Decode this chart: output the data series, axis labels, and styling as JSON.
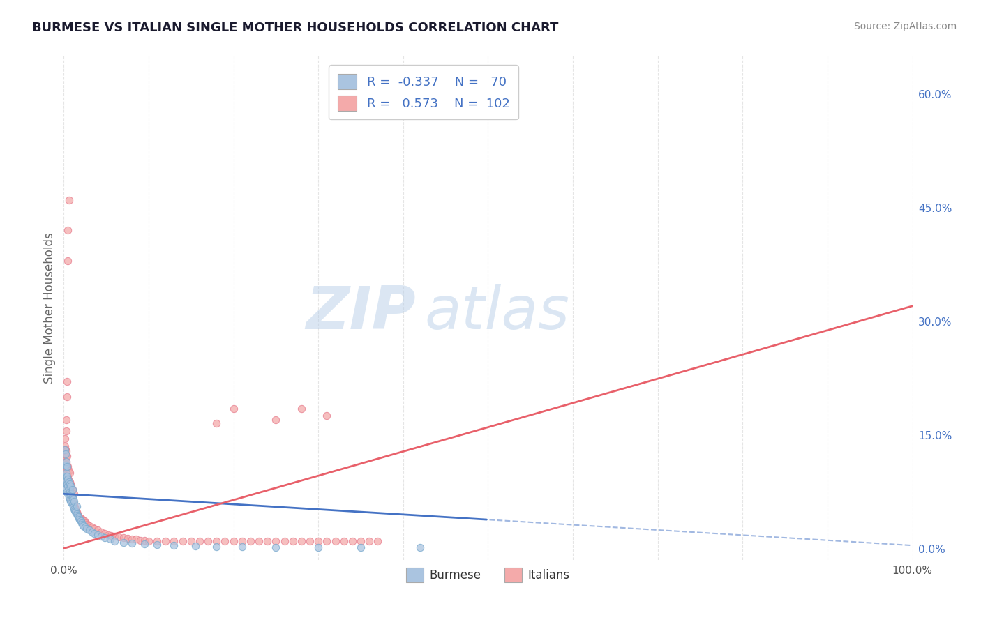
{
  "title": "BURMESE VS ITALIAN SINGLE MOTHER HOUSEHOLDS CORRELATION CHART",
  "source_text": "Source: ZipAtlas.com",
  "ylabel": "Single Mother Households",
  "watermark_zip": "ZIP",
  "watermark_atlas": "atlas",
  "xlim": [
    0.0,
    1.0
  ],
  "ylim": [
    -0.015,
    0.65
  ],
  "xtick_positions": [
    0.0,
    0.1,
    0.2,
    0.3,
    0.4,
    0.5,
    0.6,
    0.7,
    0.8,
    0.9,
    1.0
  ],
  "xtick_labels": [
    "0.0%",
    "",
    "",
    "",
    "",
    "",
    "",
    "",
    "",
    "",
    "100.0%"
  ],
  "yticks_right": [
    0.0,
    0.15,
    0.3,
    0.45,
    0.6
  ],
  "ytick_labels_right": [
    "0.0%",
    "15.0%",
    "30.0%",
    "45.0%",
    "60.0%"
  ],
  "burmese_facecolor": "#aac4e0",
  "burmese_edgecolor": "#7aaace",
  "italian_facecolor": "#f4aaaa",
  "italian_edgecolor": "#e88090",
  "burmese_line_color": "#4472c4",
  "italian_line_color": "#e8606a",
  "burmese_R": -0.337,
  "burmese_N": 70,
  "italian_R": 0.573,
  "italian_N": 102,
  "legend_label_burmese": "Burmese",
  "legend_label_italian": "Italians",
  "blue_text_color": "#4472c4",
  "title_color": "#1a1a2e",
  "axis_label_color": "#666666",
  "grid_color": "#cccccc",
  "background_color": "#ffffff",
  "burmese_line_intercept": 0.072,
  "burmese_line_slope": -0.068,
  "italian_line_intercept": 0.0,
  "italian_line_slope": 0.32,
  "burmese_scatter_x": [
    0.001,
    0.001,
    0.001,
    0.002,
    0.002,
    0.002,
    0.002,
    0.003,
    0.003,
    0.003,
    0.003,
    0.004,
    0.004,
    0.004,
    0.004,
    0.005,
    0.005,
    0.005,
    0.006,
    0.006,
    0.006,
    0.007,
    0.007,
    0.007,
    0.008,
    0.008,
    0.008,
    0.009,
    0.009,
    0.01,
    0.01,
    0.01,
    0.011,
    0.011,
    0.012,
    0.012,
    0.013,
    0.014,
    0.015,
    0.015,
    0.016,
    0.017,
    0.018,
    0.019,
    0.02,
    0.021,
    0.022,
    0.023,
    0.025,
    0.027,
    0.03,
    0.033,
    0.036,
    0.04,
    0.044,
    0.048,
    0.055,
    0.06,
    0.07,
    0.08,
    0.095,
    0.11,
    0.13,
    0.155,
    0.18,
    0.21,
    0.25,
    0.3,
    0.35,
    0.42
  ],
  "burmese_scatter_y": [
    0.095,
    0.11,
    0.13,
    0.085,
    0.095,
    0.11,
    0.125,
    0.08,
    0.09,
    0.1,
    0.115,
    0.075,
    0.085,
    0.095,
    0.108,
    0.072,
    0.082,
    0.092,
    0.068,
    0.078,
    0.088,
    0.065,
    0.075,
    0.085,
    0.062,
    0.072,
    0.082,
    0.06,
    0.07,
    0.058,
    0.068,
    0.078,
    0.055,
    0.065,
    0.052,
    0.062,
    0.05,
    0.048,
    0.046,
    0.056,
    0.044,
    0.042,
    0.04,
    0.038,
    0.036,
    0.034,
    0.032,
    0.03,
    0.028,
    0.026,
    0.024,
    0.022,
    0.02,
    0.018,
    0.016,
    0.014,
    0.012,
    0.01,
    0.008,
    0.007,
    0.006,
    0.005,
    0.004,
    0.003,
    0.002,
    0.002,
    0.001,
    0.001,
    0.001,
    0.001
  ],
  "italian_scatter_x": [
    0.001,
    0.001,
    0.001,
    0.001,
    0.001,
    0.002,
    0.002,
    0.002,
    0.002,
    0.003,
    0.003,
    0.003,
    0.003,
    0.004,
    0.004,
    0.004,
    0.004,
    0.005,
    0.005,
    0.005,
    0.006,
    0.006,
    0.006,
    0.007,
    0.007,
    0.007,
    0.008,
    0.008,
    0.009,
    0.009,
    0.01,
    0.01,
    0.011,
    0.012,
    0.012,
    0.013,
    0.014,
    0.015,
    0.016,
    0.017,
    0.018,
    0.02,
    0.022,
    0.024,
    0.026,
    0.028,
    0.03,
    0.033,
    0.036,
    0.04,
    0.044,
    0.048,
    0.052,
    0.056,
    0.06,
    0.065,
    0.07,
    0.075,
    0.08,
    0.085,
    0.09,
    0.095,
    0.1,
    0.11,
    0.12,
    0.13,
    0.14,
    0.15,
    0.16,
    0.17,
    0.18,
    0.19,
    0.2,
    0.21,
    0.22,
    0.23,
    0.24,
    0.25,
    0.26,
    0.27,
    0.28,
    0.29,
    0.3,
    0.31,
    0.32,
    0.33,
    0.34,
    0.35,
    0.36,
    0.37,
    0.003,
    0.003,
    0.004,
    0.004,
    0.005,
    0.005,
    0.006,
    0.18,
    0.2,
    0.25,
    0.28,
    0.31
  ],
  "italian_scatter_y": [
    0.1,
    0.115,
    0.125,
    0.135,
    0.145,
    0.095,
    0.108,
    0.12,
    0.13,
    0.09,
    0.102,
    0.115,
    0.128,
    0.085,
    0.098,
    0.11,
    0.122,
    0.082,
    0.095,
    0.108,
    0.078,
    0.09,
    0.103,
    0.075,
    0.088,
    0.1,
    0.072,
    0.085,
    0.068,
    0.082,
    0.065,
    0.078,
    0.062,
    0.058,
    0.072,
    0.055,
    0.052,
    0.048,
    0.046,
    0.044,
    0.042,
    0.04,
    0.038,
    0.036,
    0.034,
    0.032,
    0.03,
    0.028,
    0.026,
    0.024,
    0.022,
    0.02,
    0.018,
    0.017,
    0.016,
    0.015,
    0.014,
    0.013,
    0.012,
    0.012,
    0.011,
    0.011,
    0.01,
    0.01,
    0.01,
    0.01,
    0.01,
    0.01,
    0.01,
    0.01,
    0.01,
    0.01,
    0.01,
    0.01,
    0.01,
    0.01,
    0.01,
    0.01,
    0.01,
    0.01,
    0.01,
    0.01,
    0.01,
    0.01,
    0.01,
    0.01,
    0.01,
    0.01,
    0.01,
    0.01,
    0.155,
    0.17,
    0.2,
    0.22,
    0.38,
    0.42,
    0.46,
    0.165,
    0.185,
    0.17,
    0.185,
    0.175
  ]
}
